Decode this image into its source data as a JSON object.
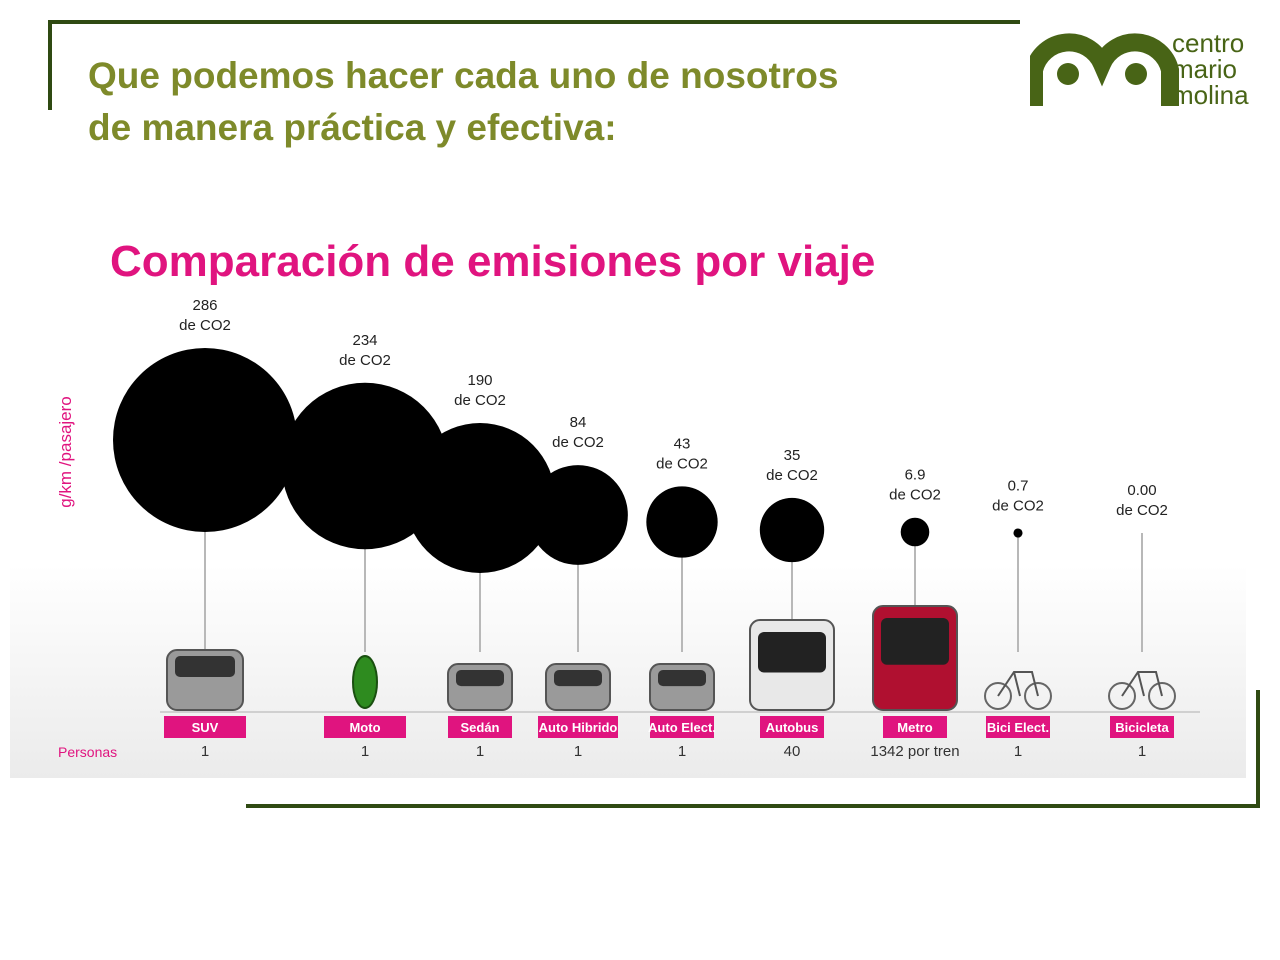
{
  "header": {
    "title_line1": "Que podemos hacer cada uno de nosotros",
    "title_line2": "de manera práctica y efectiva:"
  },
  "logo": {
    "line1": "centro",
    "line2": "mario",
    "line3": "molina",
    "color": "#486416"
  },
  "colors": {
    "accent": "#e0147f",
    "frame": "#2f4a12",
    "bubble": "#000000"
  },
  "chart_data": {
    "type": "bubble",
    "title": "Comparación de emisiones por viaje",
    "ylabel": "g/km /pasajero",
    "row_label": "Personas",
    "categories": [
      "SUV",
      "Moto",
      "Sedán",
      "Auto Hibrido",
      "Auto Elect.",
      "Autobus",
      "Metro",
      "Bici Elect.",
      "Bicicleta"
    ],
    "series": [
      {
        "values": [
          286,
          234,
          190,
          84,
          43,
          35,
          6.9,
          0.7,
          0.0
        ]
      }
    ],
    "value_labels": [
      "286",
      "234",
      "190",
      "84",
      "43",
      "35",
      "6.9",
      "0.7",
      "0.00"
    ],
    "unit_label": "de CO2",
    "personas": [
      "1",
      "1",
      "1",
      "1",
      "1",
      "40",
      "1342 por tren",
      "1",
      "1"
    ],
    "icons": [
      "suv-icon",
      "motorcycle-icon",
      "sedan-icon",
      "hybrid-car-icon",
      "electric-car-icon",
      "bus-icon",
      "metro-train-icon",
      "electric-bike-icon",
      "bicycle-icon"
    ]
  }
}
